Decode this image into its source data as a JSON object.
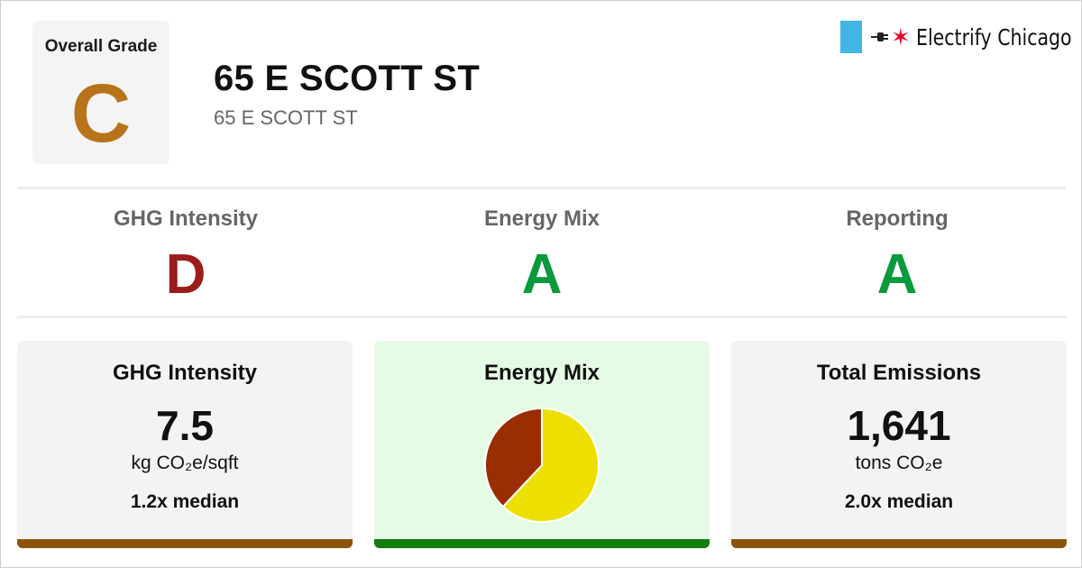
{
  "header": {
    "overall_grade_label": "Overall Grade",
    "overall_grade": "C",
    "overall_grade_color": "#b8741a",
    "building_name": "65 E SCOTT ST",
    "building_address": "65 E SCOTT ST"
  },
  "logo": {
    "text": "Electrify Chicago",
    "flag_color": "#41b6e6",
    "star_color": "#e4002b",
    "icons": [
      "chicago-flag-icon",
      "plug-icon",
      "chicago-star-icon"
    ]
  },
  "grades": [
    {
      "label": "GHG Intensity",
      "grade": "D",
      "color": "#9b1c1c"
    },
    {
      "label": "Energy Mix",
      "grade": "A",
      "color": "#0a9a3c"
    },
    {
      "label": "Reporting",
      "grade": "A",
      "color": "#0a9a3c"
    }
  ],
  "cards": {
    "ghg": {
      "title": "GHG Intensity",
      "value": "7.5",
      "unit": "kg CO₂e/sqft",
      "median": "1.2x median",
      "bar_color": "#8b5408"
    },
    "energy_mix": {
      "title": "Energy Mix",
      "background": "#e6fbe6",
      "bar_color": "#0f7f0f"
    },
    "emissions": {
      "title": "Total Emissions",
      "value": "1,641",
      "unit": "tons CO₂e",
      "median": "2.0x median",
      "bar_color": "#8b5408"
    }
  },
  "chart_data": {
    "type": "pie",
    "series": [
      {
        "value": 0.62,
        "color": "#ede000"
      },
      {
        "value": 0.38,
        "color": "#9a2e00"
      }
    ]
  }
}
